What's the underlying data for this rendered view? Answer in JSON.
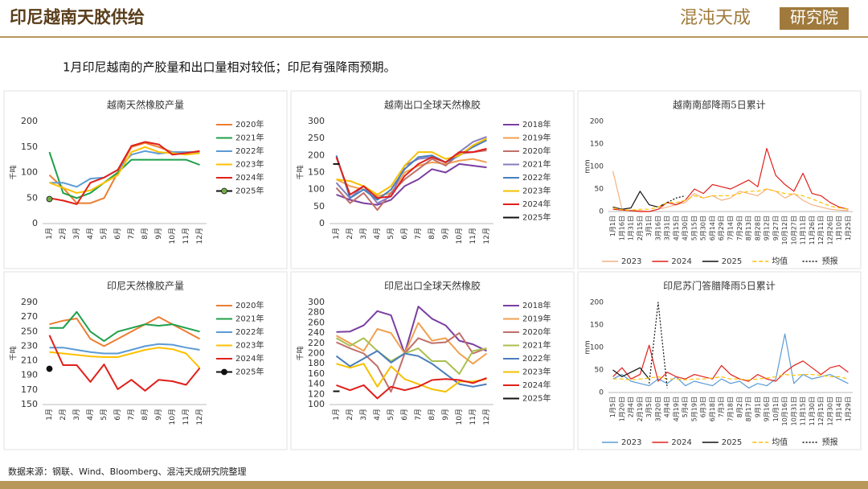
{
  "header": {
    "title": "印尼越南天胶供给",
    "logo_main": "混沌天成",
    "logo_box": "研究院"
  },
  "subtitle": "1月印尼越南的产胶量和出口量相对较低；印尼有强降雨预期。",
  "footer": {
    "source": "数据来源：钢联、Wind、Bloomberg、混沌天成研究院整理"
  },
  "chart_data": [
    {
      "type": "line",
      "title": "越南天然橡胶产量",
      "ylabel": "千吨",
      "legend": "right",
      "grid": false,
      "categories": [
        "1月",
        "2月",
        "3月",
        "4月",
        "5月",
        "6月",
        "7月",
        "8月",
        "9月",
        "10月",
        "11月",
        "12月"
      ],
      "ylim": [
        0,
        200
      ],
      "yticks": [
        0,
        50,
        100,
        150,
        200
      ],
      "series": [
        {
          "name": "2020年",
          "color": "#ED7D31",
          "values": [
            95,
            70,
            40,
            40,
            50,
            100,
            150,
            158,
            150,
            140,
            140,
            140
          ]
        },
        {
          "name": "2021年",
          "color": "#1EA04A",
          "values": [
            140,
            60,
            50,
            60,
            80,
            100,
            125,
            125,
            125,
            125,
            125,
            115
          ]
        },
        {
          "name": "2022年",
          "color": "#5B9BD5",
          "values": [
            80,
            80,
            72,
            88,
            90,
            105,
            135,
            142,
            137,
            140,
            140,
            140
          ]
        },
        {
          "name": "2023年",
          "color": "#FFC000",
          "values": [
            80,
            70,
            60,
            65,
            80,
            95,
            140,
            150,
            140,
            138,
            135,
            138
          ]
        },
        {
          "name": "2024年",
          "color": "#E0201B",
          "values": [
            50,
            45,
            38,
            80,
            90,
            105,
            152,
            160,
            155,
            135,
            138,
            142
          ]
        },
        {
          "name": "2025年",
          "color": "#111111",
          "marker": "#70AD47",
          "values": [
            48,
            null,
            null,
            null,
            null,
            null,
            null,
            null,
            null,
            null,
            null,
            null
          ]
        }
      ]
    },
    {
      "type": "line",
      "title": "越南出口全球天然橡胶",
      "ylabel": "千吨",
      "legend": "right",
      "grid": false,
      "categories": [
        "1月",
        "2月",
        "3月",
        "4月",
        "5月",
        "6月",
        "7月",
        "8月",
        "9月",
        "10月",
        "11月",
        "12月"
      ],
      "ylim": [
        0,
        300
      ],
      "yticks": [
        0,
        50,
        100,
        150,
        200,
        250,
        300
      ],
      "series": [
        {
          "name": "2018年",
          "color": "#7B3FA0",
          "values": [
            85,
            70,
            60,
            55,
            70,
            110,
            130,
            160,
            150,
            175,
            170,
            165
          ]
        },
        {
          "name": "2019年",
          "color": "#F0A050",
          "values": [
            130,
            110,
            100,
            80,
            90,
            150,
            170,
            180,
            175,
            185,
            190,
            180
          ]
        },
        {
          "name": "2020年",
          "color": "#C0706A",
          "values": [
            105,
            60,
            90,
            40,
            90,
            130,
            160,
            190,
            170,
            205,
            210,
            215
          ]
        },
        {
          "name": "2021年",
          "color": "#8A7CC0",
          "values": [
            120,
            75,
            110,
            60,
            80,
            170,
            190,
            195,
            180,
            210,
            240,
            255
          ]
        },
        {
          "name": "2022年",
          "color": "#4A7EBB",
          "values": [
            200,
            75,
            100,
            70,
            100,
            160,
            195,
            200,
            180,
            200,
            225,
            245
          ]
        },
        {
          "name": "2023年",
          "color": "#F5C000",
          "values": [
            130,
            125,
            110,
            85,
            110,
            170,
            210,
            210,
            190,
            200,
            230,
            250
          ]
        },
        {
          "name": "2024年",
          "color": "#E0201B",
          "values": [
            195,
            85,
            110,
            75,
            80,
            140,
            175,
            195,
            180,
            210,
            210,
            220
          ]
        },
        {
          "name": "2025年",
          "color": "#111111",
          "values": [
            175,
            null,
            null,
            null,
            null,
            null,
            null,
            null,
            null,
            null,
            null,
            null
          ]
        }
      ]
    },
    {
      "type": "line",
      "title": "越南南部降雨5日累计",
      "ylabel": "mm",
      "legend": "bottom",
      "grid": false,
      "categories": [
        "1月1日",
        "1月16日",
        "1月31日",
        "2月15日",
        "3月1日",
        "3月16日",
        "3月31日",
        "4月15日",
        "4月30日",
        "5月15日",
        "5月30日",
        "6月14日",
        "6月29日",
        "7月14日",
        "7月29日",
        "8月13日",
        "8月28日",
        "9月12日",
        "9月27日",
        "10月12日",
        "10月27日",
        "11月11日",
        "11月26日",
        "12月11日",
        "12月26日",
        "1月10日",
        "1月25日"
      ],
      "ylim": [
        0,
        200
      ],
      "yticks": [
        0,
        50,
        100,
        150,
        200
      ],
      "series": [
        {
          "name": "2023",
          "color": "#F4B183",
          "values": [
            90,
            5,
            2,
            2,
            0,
            5,
            10,
            15,
            20,
            40,
            30,
            35,
            25,
            30,
            45,
            40,
            35,
            50,
            45,
            30,
            40,
            25,
            15,
            10,
            5,
            3,
            2
          ]
        },
        {
          "name": "2024",
          "color": "#E0201B",
          "values": [
            5,
            3,
            2,
            0,
            0,
            5,
            20,
            15,
            25,
            50,
            40,
            60,
            55,
            50,
            60,
            70,
            55,
            140,
            80,
            60,
            45,
            85,
            40,
            35,
            20,
            10,
            5
          ]
        },
        {
          "name": "2025",
          "color": "#111111",
          "values": [
            10,
            5,
            8,
            45,
            15,
            10,
            20,
            null,
            null,
            null,
            null,
            null,
            null,
            null,
            null,
            null,
            null,
            null,
            null,
            null,
            null,
            null,
            null,
            null,
            null,
            null,
            null
          ]
        },
        {
          "name": "均值",
          "color": "#FFC000",
          "style": "dashed",
          "values": [
            8,
            4,
            3,
            5,
            5,
            10,
            20,
            20,
            25,
            35,
            30,
            35,
            35,
            35,
            40,
            45,
            45,
            50,
            45,
            40,
            38,
            35,
            28,
            20,
            12,
            8,
            5
          ]
        },
        {
          "name": "预报",
          "color": "#111111",
          "style": "dotted",
          "values": [
            null,
            null,
            null,
            null,
            null,
            null,
            20,
            30,
            35,
            null,
            null,
            null,
            null,
            null,
            null,
            null,
            null,
            null,
            null,
            null,
            null,
            null,
            null,
            null,
            null,
            null,
            null
          ]
        }
      ]
    },
    {
      "type": "line",
      "title": "印尼天然橡胶产量",
      "ylabel": "千吨",
      "legend": "right",
      "grid": false,
      "categories": [
        "1月",
        "2月",
        "3月",
        "4月",
        "5月",
        "6月",
        "7月",
        "8月",
        "9月",
        "10月",
        "11月",
        "12月"
      ],
      "ylim": [
        150,
        290
      ],
      "yticks": [
        150,
        170,
        190,
        210,
        230,
        250,
        270,
        290
      ],
      "series": [
        {
          "name": "2020年",
          "color": "#ED7D31",
          "values": [
            260,
            265,
            268,
            240,
            230,
            240,
            250,
            260,
            270,
            260,
            250,
            240
          ]
        },
        {
          "name": "2021年",
          "color": "#1EA04A",
          "values": [
            255,
            255,
            277,
            250,
            237,
            250,
            255,
            260,
            258,
            260,
            255,
            250
          ]
        },
        {
          "name": "2022年",
          "color": "#5B9BD5",
          "values": [
            228,
            228,
            225,
            222,
            220,
            220,
            225,
            230,
            233,
            232,
            228,
            225
          ]
        },
        {
          "name": "2023年",
          "color": "#FFC000",
          "values": [
            222,
            220,
            218,
            216,
            215,
            215,
            220,
            225,
            228,
            226,
            220,
            200
          ]
        },
        {
          "name": "2024年",
          "color": "#E0201B",
          "values": [
            245,
            204,
            204,
            181,
            205,
            171,
            184,
            169,
            184,
            182,
            177,
            200
          ]
        },
        {
          "name": "2025年",
          "color": "#111111",
          "marker": "#111111",
          "values": [
            199,
            null,
            null,
            null,
            null,
            null,
            null,
            null,
            null,
            null,
            null,
            null
          ]
        }
      ]
    },
    {
      "type": "line",
      "title": "印尼出口全球天然橡胶",
      "ylabel": "千吨",
      "legend": "right",
      "grid": false,
      "categories": [
        "1月",
        "2月",
        "3月",
        "4月",
        "5月",
        "6月",
        "7月",
        "8月",
        "9月",
        "10月",
        "11月",
        "12月"
      ],
      "ylim": [
        100,
        300
      ],
      "yticks": [
        100,
        120,
        140,
        160,
        180,
        200,
        220,
        240,
        260,
        280,
        300
      ],
      "series": [
        {
          "name": "2018年",
          "color": "#7B3FA0",
          "values": [
            242,
            243,
            255,
            283,
            275,
            200,
            292,
            268,
            255,
            225,
            218,
            205
          ]
        },
        {
          "name": "2019年",
          "color": "#F0A050",
          "values": [
            235,
            220,
            205,
            248,
            240,
            200,
            260,
            225,
            230,
            200,
            180,
            200
          ]
        },
        {
          "name": "2020年",
          "color": "#C0706A",
          "values": [
            222,
            210,
            200,
            175,
            125,
            200,
            230,
            220,
            222,
            240,
            200,
            210
          ]
        },
        {
          "name": "2021年",
          "color": "#A9C050",
          "values": [
            230,
            215,
            230,
            205,
            185,
            200,
            210,
            185,
            185,
            160,
            205,
            210
          ]
        },
        {
          "name": "2022年",
          "color": "#4A7EBB",
          "values": [
            195,
            175,
            190,
            205,
            182,
            200,
            195,
            180,
            160,
            140,
            135,
            140
          ]
        },
        {
          "name": "2023年",
          "color": "#F5C000",
          "values": [
            180,
            172,
            180,
            135,
            175,
            150,
            140,
            130,
            125,
            145,
            145,
            150
          ]
        },
        {
          "name": "2024年",
          "color": "#E0201B",
          "values": [
            138,
            128,
            138,
            112,
            135,
            128,
            135,
            148,
            150,
            148,
            142,
            152
          ]
        },
        {
          "name": "2025年",
          "color": "#111111",
          "values": [
            126,
            null,
            null,
            null,
            null,
            null,
            null,
            null,
            null,
            null,
            null,
            null
          ]
        }
      ]
    },
    {
      "type": "line",
      "title": "印尼苏门答腊降雨5日累计",
      "ylabel": "mm",
      "legend": "bottom",
      "grid": false,
      "categories": [
        "1月5日",
        "1月20日",
        "2月4日",
        "2月19日",
        "3月5日",
        "3月20日",
        "4月4日",
        "4月19日",
        "5月4日",
        "5月19日",
        "6月3日",
        "6月18日",
        "7月3日",
        "7月18日",
        "8月2日",
        "8月17日",
        "9月1日",
        "9月16日",
        "10月1日",
        "10月16日",
        "10月31日",
        "11月15日",
        "11月30日",
        "12月15日",
        "12月30日",
        "1月14日",
        "1月29日"
      ],
      "ylim": [
        0,
        200
      ],
      "yticks": [
        0,
        50,
        100,
        150,
        200
      ],
      "series": [
        {
          "name": "2023",
          "color": "#5B9BD5",
          "values": [
            30,
            40,
            25,
            20,
            15,
            30,
            20,
            35,
            15,
            25,
            20,
            15,
            30,
            20,
            25,
            10,
            20,
            15,
            30,
            130,
            20,
            40,
            30,
            35,
            40,
            30,
            20
          ]
        },
        {
          "name": "2024",
          "color": "#E0201B",
          "values": [
            35,
            55,
            30,
            40,
            105,
            25,
            45,
            35,
            30,
            40,
            35,
            30,
            60,
            40,
            30,
            25,
            40,
            30,
            25,
            45,
            60,
            70,
            55,
            40,
            55,
            60,
            45
          ]
        },
        {
          "name": "2025",
          "color": "#111111",
          "values": [
            50,
            35,
            45,
            55,
            30,
            null,
            null,
            null,
            null,
            null,
            null,
            null,
            null,
            null,
            null,
            null,
            null,
            null,
            null,
            null,
            null,
            null,
            null,
            null,
            null,
            null,
            null
          ]
        },
        {
          "name": "均值",
          "color": "#FFC000",
          "style": "dashed",
          "values": [
            30,
            30,
            28,
            30,
            32,
            35,
            30,
            30,
            28,
            30,
            30,
            32,
            35,
            30,
            30,
            28,
            30,
            32,
            35,
            40,
            38,
            40,
            40,
            38,
            35,
            35,
            30
          ]
        },
        {
          "name": "预报",
          "color": "#111111",
          "style": "dotted",
          "values": [
            null,
            null,
            null,
            null,
            20,
            200,
            10,
            null,
            null,
            null,
            null,
            null,
            null,
            null,
            null,
            null,
            null,
            null,
            null,
            null,
            null,
            null,
            null,
            null,
            null,
            null,
            null
          ]
        }
      ]
    }
  ]
}
